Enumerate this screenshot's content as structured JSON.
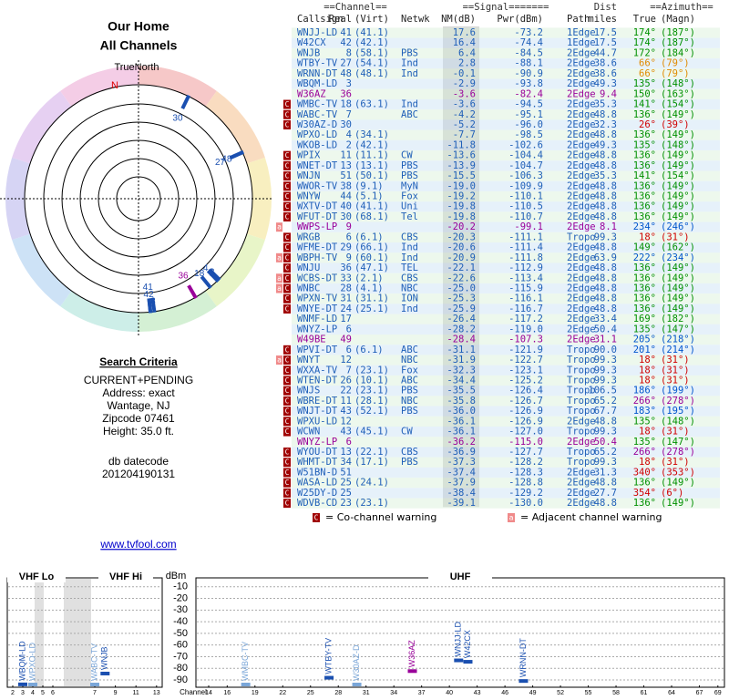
{
  "header": {
    "title": "Our Home",
    "subtitle": "All Channels"
  },
  "compass": {
    "north_label": "TrueNorth",
    "n": "N"
  },
  "criteria": {
    "title": "Search Criteria",
    "lines": [
      "CURRENT+PENDING",
      "Address: exact",
      "Wantage, NJ",
      "Zipcode 07461",
      "Height: 35.0 ft."
    ],
    "datecode_label": "db datecode",
    "datecode": "201204190131"
  },
  "link": "www.tvfool.com",
  "table": {
    "groups": [
      "==Channel==",
      "==Signal=======",
      "Dist",
      "==Azimuth=="
    ],
    "columns": [
      "Callsign",
      "Real",
      "(Virt)",
      "Netwk",
      "NM(dB)",
      "Pwr(dBm)",
      "Path",
      "miles",
      "True",
      "(Magn)"
    ],
    "rows": [
      {
        "call": "WNJJ-LD",
        "real": 41,
        "virt": "(41.1)",
        "nm": "17.6",
        "pwr": "-73.2",
        "path": "1Edge",
        "dist": "17.5",
        "true": "174°",
        "magn": "(187°)"
      },
      {
        "call": "W42CX",
        "real": 42,
        "virt": "(42.1)",
        "nm": "16.4",
        "pwr": "-74.4",
        "path": "1Edge",
        "dist": "17.5",
        "true": "174°",
        "magn": "(187°)"
      },
      {
        "call": "WNJB",
        "real": 8,
        "virt": "(58.1)",
        "net": "PBS",
        "nm": "6.4",
        "pwr": "-84.5",
        "path": "2Edge",
        "dist": "44.7",
        "true": "172°",
        "magn": "(184°)"
      },
      {
        "call": "WTBY-TV",
        "real": 27,
        "virt": "(54.1)",
        "net": "Ind",
        "nm": "2.8",
        "pwr": "-88.1",
        "path": "2Edge",
        "dist": "38.6",
        "true": "66°",
        "magn": "(79°)"
      },
      {
        "call": "WRNN-DT",
        "real": 48,
        "virt": "(48.1)",
        "net": "Ind",
        "nm": "-0.1",
        "pwr": "-90.9",
        "path": "2Edge",
        "dist": "38.6",
        "true": "66°",
        "magn": "(79°)"
      },
      {
        "call": "WBQM-LD",
        "real": 3,
        "nm": "-2.9",
        "pwr": "-93.8",
        "path": "2Edge",
        "dist": "49.3",
        "true": "135°",
        "magn": "(148°)"
      },
      {
        "call": "W36AZ",
        "real": 36,
        "nm": "-3.6",
        "pwr": "-82.4",
        "path": "2Edge",
        "dist": "9.4",
        "true": "150°",
        "magn": "(163°)",
        "color": "#990099"
      },
      {
        "call": "WMBC-TV",
        "real": 18,
        "virt": "(63.1)",
        "net": "Ind",
        "nm": "-3.6",
        "pwr": "-94.5",
        "path": "2Edge",
        "dist": "35.3",
        "true": "141°",
        "magn": "(154°)",
        "co": "C"
      },
      {
        "call": "WABC-TV",
        "real": 7,
        "net": "ABC",
        "nm": "-4.2",
        "pwr": "-95.1",
        "path": "2Edge",
        "dist": "48.8",
        "true": "136°",
        "magn": "(149°)",
        "co": "C"
      },
      {
        "call": "W30AZ-D",
        "real": 30,
        "nm": "-5.2",
        "pwr": "-96.0",
        "path": "2Edge",
        "dist": "32.3",
        "true": "26°",
        "magn": "(39°)",
        "co": "C"
      },
      {
        "call": "WPXO-LD",
        "real": 4,
        "virt": "(34.1)",
        "nm": "-7.7",
        "pwr": "-98.5",
        "path": "2Edge",
        "dist": "48.8",
        "true": "136°",
        "magn": "(149°)"
      },
      {
        "call": "WKOB-LD",
        "real": 2,
        "virt": "(42.1)",
        "nm": "-11.8",
        "pwr": "-102.6",
        "path": "2Edge",
        "dist": "49.3",
        "true": "135°",
        "magn": "(148°)"
      },
      {
        "call": "WPIX",
        "real": 11,
        "virt": "(11.1)",
        "net": "CW",
        "nm": "-13.6",
        "pwr": "-104.4",
        "path": "2Edge",
        "dist": "48.8",
        "true": "136°",
        "magn": "(149°)",
        "co": "C"
      },
      {
        "call": "WNET-DT",
        "real": 13,
        "virt": "(13.1)",
        "net": "PBS",
        "nm": "-13.9",
        "pwr": "-104.7",
        "path": "2Edge",
        "dist": "48.8",
        "true": "136°",
        "magn": "(149°)",
        "co": "C"
      },
      {
        "call": "WNJN",
        "real": 51,
        "virt": "(50.1)",
        "net": "PBS",
        "nm": "-15.5",
        "pwr": "-106.3",
        "path": "2Edge",
        "dist": "35.3",
        "true": "141°",
        "magn": "(154°)",
        "co": "C"
      },
      {
        "call": "WWOR-TV",
        "real": 38,
        "virt": "(9.1)",
        "net": "MyN",
        "nm": "-19.0",
        "pwr": "-109.9",
        "path": "2Edge",
        "dist": "48.8",
        "true": "136°",
        "magn": "(149°)",
        "co": "C"
      },
      {
        "call": "WNYW",
        "real": 44,
        "virt": "(5.1)",
        "net": "Fox",
        "nm": "-19.2",
        "pwr": "-110.1",
        "path": "2Edge",
        "dist": "48.8",
        "true": "136°",
        "magn": "(149°)",
        "co": "C"
      },
      {
        "call": "WXTV-DT",
        "real": 40,
        "virt": "(41.1)",
        "net": "Uni",
        "nm": "-19.8",
        "pwr": "-110.5",
        "path": "2Edge",
        "dist": "48.8",
        "true": "136°",
        "magn": "(149°)",
        "co": "C"
      },
      {
        "call": "WFUT-DT",
        "real": 30,
        "virt": "(68.1)",
        "net": "Tel",
        "nm": "-19.8",
        "pwr": "-110.7",
        "path": "2Edge",
        "dist": "48.8",
        "true": "136°",
        "magn": "(149°)",
        "co": "C"
      },
      {
        "call": "WWPS-LP",
        "real": 9,
        "nm": "-20.2",
        "pwr": "-99.1",
        "path": "2Edge",
        "dist": "8.1",
        "true": "234°",
        "magn": "(246°)",
        "adj": "a",
        "color": "#990099"
      },
      {
        "call": "WRGB",
        "real": 6,
        "virt": "(6.1)",
        "net": "CBS",
        "nm": "-20.3",
        "pwr": "-111.1",
        "path": "Tropo",
        "dist": "99.3",
        "true": "18°",
        "magn": "(31°)",
        "co": "C"
      },
      {
        "call": "WFME-DT",
        "real": 29,
        "virt": "(66.1)",
        "net": "Ind",
        "nm": "-20.6",
        "pwr": "-111.4",
        "path": "2Edge",
        "dist": "48.8",
        "true": "149°",
        "magn": "(162°)",
        "co": "C"
      },
      {
        "call": "WBPH-TV",
        "real": 9,
        "virt": "(60.1)",
        "net": "Ind",
        "nm": "-20.9",
        "pwr": "-111.8",
        "path": "2Edge",
        "dist": "63.9",
        "true": "222°",
        "magn": "(234°)",
        "adj": "a",
        "co": "C"
      },
      {
        "call": "WNJU",
        "real": 36,
        "virt": "(47.1)",
        "net": "TEL",
        "nm": "-22.1",
        "pwr": "-112.9",
        "path": "2Edge",
        "dist": "48.8",
        "true": "136°",
        "magn": "(149°)",
        "co": "C"
      },
      {
        "call": "WCBS-DT",
        "real": 33,
        "virt": "(2.1)",
        "net": "CBS",
        "nm": "-22.6",
        "pwr": "-113.4",
        "path": "2Edge",
        "dist": "48.8",
        "true": "136°",
        "magn": "(149°)",
        "adj": "a",
        "co": "C"
      },
      {
        "call": "WNBC",
        "real": 28,
        "virt": "(4.1)",
        "net": "NBC",
        "nm": "-25.0",
        "pwr": "-115.9",
        "path": "2Edge",
        "dist": "48.8",
        "true": "136°",
        "magn": "(149°)",
        "adj": "a",
        "co": "C"
      },
      {
        "call": "WPXN-TV",
        "real": 31,
        "virt": "(31.1)",
        "net": "ION",
        "nm": "-25.3",
        "pwr": "-116.1",
        "path": "2Edge",
        "dist": "48.8",
        "true": "136°",
        "magn": "(149°)",
        "co": "C"
      },
      {
        "call": "WNYE-DT",
        "real": 24,
        "virt": "(25.1)",
        "net": "Ind",
        "nm": "-25.9",
        "pwr": "-116.7",
        "path": "2Edge",
        "dist": "48.8",
        "true": "136°",
        "magn": "(149°)",
        "co": "C"
      },
      {
        "call": "WNMF-LD",
        "real": 17,
        "nm": "-26.4",
        "pwr": "-117.2",
        "path": "2Edge",
        "dist": "33.4",
        "true": "169°",
        "magn": "(182°)"
      },
      {
        "call": "WNYZ-LP",
        "real": 6,
        "nm": "-28.2",
        "pwr": "-119.0",
        "path": "2Edge",
        "dist": "50.4",
        "true": "135°",
        "magn": "(147°)"
      },
      {
        "call": "W49BE",
        "real": 49,
        "nm": "-28.4",
        "pwr": "-107.3",
        "path": "2Edge",
        "dist": "31.1",
        "true": "205°",
        "magn": "(218°)",
        "color": "#990099"
      },
      {
        "call": "WPVI-DT",
        "real": 6,
        "virt": "(6.1)",
        "net": "ABC",
        "nm": "-31.1",
        "pwr": "-121.9",
        "path": "Tropo",
        "dist": "90.0",
        "true": "201°",
        "magn": "(214°)",
        "co": "C"
      },
      {
        "call": "WNYT",
        "real": 12,
        "net": "NBC",
        "nm": "-31.9",
        "pwr": "-122.7",
        "path": "Tropo",
        "dist": "99.3",
        "true": "18°",
        "magn": "(31°)",
        "adj": "a",
        "co": "C"
      },
      {
        "call": "WXXA-TV",
        "real": 7,
        "virt": "(23.1)",
        "net": "Fox",
        "nm": "-32.3",
        "pwr": "-123.1",
        "path": "Tropo",
        "dist": "99.3",
        "true": "18°",
        "magn": "(31°)",
        "co": "C"
      },
      {
        "call": "WTEN-DT",
        "real": 26,
        "virt": "(10.1)",
        "net": "ABC",
        "nm": "-34.4",
        "pwr": "-125.2",
        "path": "Tropo",
        "dist": "99.3",
        "true": "18°",
        "magn": "(31°)",
        "co": "C"
      },
      {
        "call": "WNJS",
        "real": 22,
        "virt": "(23.1)",
        "net": "PBS",
        "nm": "-35.5",
        "pwr": "-126.4",
        "path": "Tropo",
        "dist": "106.5",
        "true": "186°",
        "magn": "(199°)",
        "co": "C"
      },
      {
        "call": "WBRE-DT",
        "real": 11,
        "virt": "(28.1)",
        "net": "NBC",
        "nm": "-35.8",
        "pwr": "-126.7",
        "path": "Tropo",
        "dist": "65.2",
        "true": "266°",
        "magn": "(278°)",
        "co": "C"
      },
      {
        "call": "WNJT-DT",
        "real": 43,
        "virt": "(52.1)",
        "net": "PBS",
        "nm": "-36.0",
        "pwr": "-126.9",
        "path": "Tropo",
        "dist": "67.7",
        "true": "183°",
        "magn": "(195°)",
        "co": "C"
      },
      {
        "call": "WPXU-LD",
        "real": 12,
        "nm": "-36.1",
        "pwr": "-126.9",
        "path": "2Edge",
        "dist": "48.8",
        "true": "135°",
        "magn": "(148°)",
        "co": "C"
      },
      {
        "call": "WCWN",
        "real": 43,
        "virt": "(45.1)",
        "net": "CW",
        "nm": "-36.1",
        "pwr": "-127.0",
        "path": "Tropo",
        "dist": "99.3",
        "true": "18°",
        "magn": "(31°)",
        "co": "C"
      },
      {
        "call": "WNYZ-LP",
        "real": 6,
        "nm": "-36.2",
        "pwr": "-115.0",
        "path": "2Edge",
        "dist": "50.4",
        "true": "135°",
        "magn": "(147°)",
        "color": "#990099"
      },
      {
        "call": "WYOU-DT",
        "real": 13,
        "virt": "(22.1)",
        "net": "CBS",
        "nm": "-36.9",
        "pwr": "-127.7",
        "path": "Tropo",
        "dist": "65.2",
        "true": "266°",
        "magn": "(278°)",
        "co": "C"
      },
      {
        "call": "WHMT-DT",
        "real": 34,
        "virt": "(17.1)",
        "net": "PBS",
        "nm": "-37.3",
        "pwr": "-128.2",
        "path": "Tropo",
        "dist": "99.3",
        "true": "18°",
        "magn": "(31°)",
        "co": "C"
      },
      {
        "call": "W51BN-D",
        "real": 51,
        "nm": "-37.4",
        "pwr": "-128.3",
        "path": "2Edge",
        "dist": "31.3",
        "true": "340°",
        "magn": "(353°)",
        "co": "C"
      },
      {
        "call": "WASA-LD",
        "real": 25,
        "virt": "(24.1)",
        "nm": "-37.9",
        "pwr": "-128.8",
        "path": "2Edge",
        "dist": "48.8",
        "true": "136°",
        "magn": "(149°)",
        "co": "C"
      },
      {
        "call": "W25DY-D",
        "real": 25,
        "nm": "-38.4",
        "pwr": "-129.2",
        "path": "2Edge",
        "dist": "27.7",
        "true": "354°",
        "magn": "(6°)",
        "co": "C"
      },
      {
        "call": "WDVB-CD",
        "real": 23,
        "virt": "(23.1)",
        "nm": "-39.1",
        "pwr": "-130.0",
        "path": "2Edge",
        "dist": "48.8",
        "true": "136°",
        "magn": "(149°)",
        "co": "C"
      }
    ]
  },
  "legend": {
    "co_mark": "C",
    "co_text": "= Co-channel warning",
    "adj_mark": "a",
    "adj_text": "= Adjacent channel warning"
  },
  "spectrum": {
    "bands": [
      "VHF Lo",
      "VHF Hi",
      "UHF"
    ],
    "y_label": "dBm",
    "x_label": "Channel",
    "ylim": [
      -90,
      0
    ],
    "yticks": [
      -10,
      -20,
      -30,
      -40,
      -50,
      -60,
      -70,
      -80,
      -90
    ],
    "vhf_ticks": [
      2,
      3,
      4,
      5,
      6,
      7,
      9,
      11,
      13
    ],
    "uhf_ticks": [
      14,
      16,
      19,
      22,
      25,
      28,
      31,
      34,
      37,
      40,
      43,
      46,
      49,
      52,
      55,
      58,
      61,
      64,
      67,
      69
    ]
  }
}
